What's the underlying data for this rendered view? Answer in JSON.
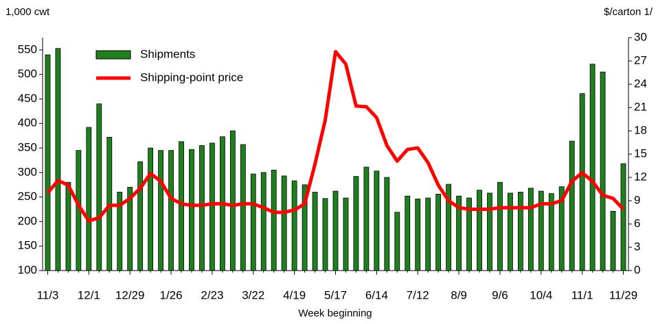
{
  "chart_data": {
    "type": "bar-line",
    "left_axis_label": "1,000 cwt",
    "right_axis_label": "$/carton 1/",
    "x_label": "Week beginning",
    "categories": [
      "11/3",
      null,
      null,
      null,
      "12/1",
      null,
      null,
      null,
      "12/29",
      null,
      null,
      null,
      "1/26",
      null,
      null,
      null,
      "2/23",
      null,
      null,
      null,
      "3/22",
      null,
      null,
      null,
      "4/19",
      null,
      null,
      null,
      "5/17",
      null,
      null,
      null,
      "6/14",
      null,
      null,
      null,
      "7/12",
      null,
      null,
      null,
      "8/9",
      null,
      null,
      null,
      "9/6",
      null,
      null,
      null,
      "10/4",
      null,
      null,
      null,
      "11/1",
      null,
      null,
      null,
      "11/29"
    ],
    "series": [
      {
        "name": "Shipments",
        "type": "bar",
        "color": "#208020",
        "values": [
          540,
          553,
          280,
          345,
          392,
          440,
          372,
          260,
          270,
          322,
          350,
          345,
          345,
          363,
          347,
          355,
          360,
          373,
          385,
          357,
          297,
          300,
          305,
          293,
          283,
          275,
          260,
          247,
          262,
          248,
          292,
          311,
          303,
          290,
          219,
          252,
          246,
          248,
          256,
          276,
          252,
          248,
          264,
          258,
          280,
          258,
          260,
          268,
          262,
          257,
          271,
          364,
          461,
          521,
          505,
          221,
          318
        ]
      },
      {
        "name": "Shipping-point price",
        "type": "line",
        "axis": "y2",
        "color": "#ff0000",
        "values": [
          10.0,
          11.6,
          11.0,
          8.4,
          6.4,
          6.8,
          8.4,
          8.4,
          9.3,
          10.6,
          12.5,
          11.5,
          9.3,
          8.6,
          8.4,
          8.4,
          8.6,
          8.6,
          8.4,
          8.6,
          8.6,
          8.1,
          7.5,
          7.5,
          7.8,
          8.6,
          13.7,
          19.4,
          28.2,
          26.6,
          21.2,
          21.1,
          19.7,
          16.1,
          14.1,
          15.6,
          15.8,
          13.9,
          11.0,
          9.0,
          8.1,
          7.9,
          7.9,
          7.9,
          8.1,
          8.1,
          8.1,
          8.1,
          8.6,
          8.6,
          9.0,
          11.5,
          12.6,
          11.5,
          9.7,
          9.3,
          7.9
        ]
      }
    ],
    "ylim": [
      100,
      575
    ],
    "yticks": [
      100,
      150,
      200,
      250,
      300,
      350,
      400,
      450,
      500,
      550
    ],
    "y2lim": [
      0,
      30
    ],
    "y2ticks": [
      0,
      3,
      6,
      9,
      12,
      15,
      18,
      21,
      24,
      27,
      30
    ],
    "legend": "upper left"
  }
}
